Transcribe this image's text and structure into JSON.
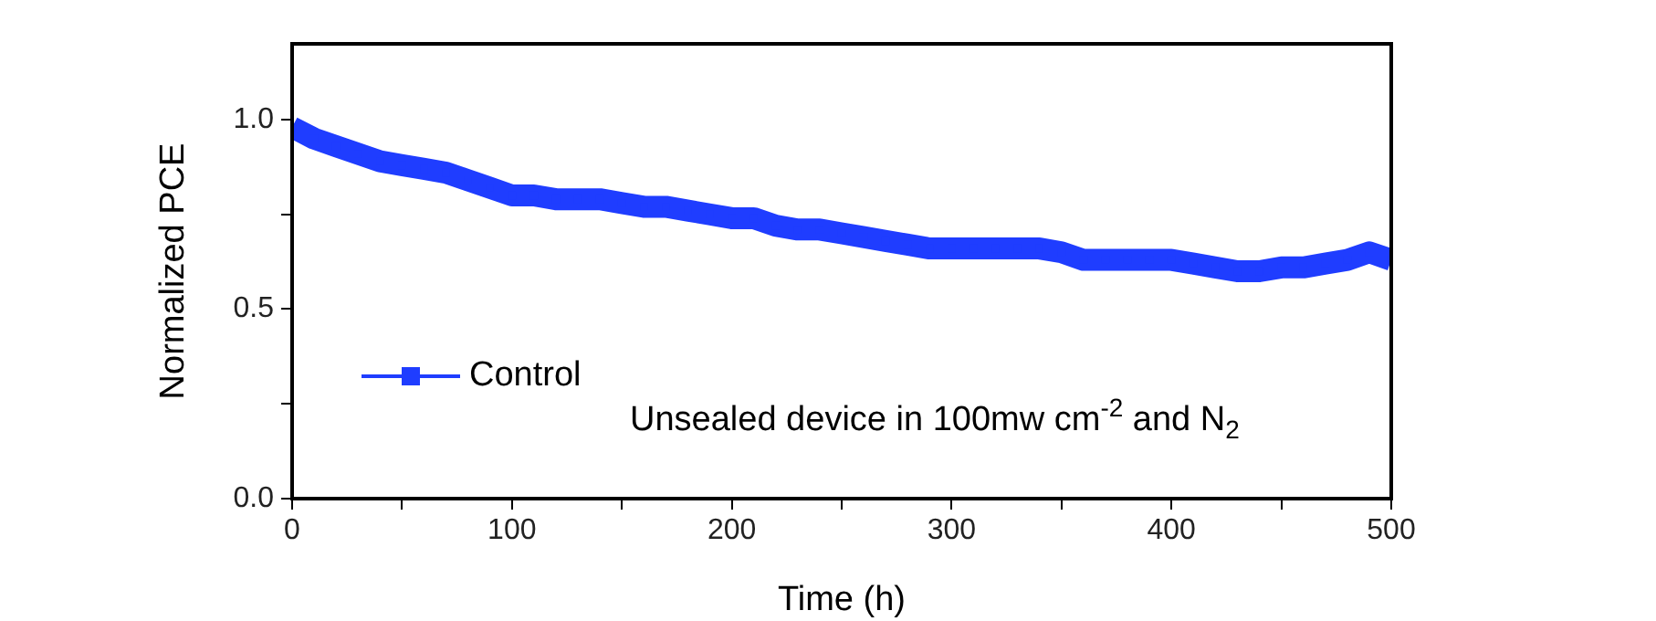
{
  "chart_data": {
    "type": "line",
    "xlabel": "Time (h)",
    "ylabel": "Normalized PCE",
    "xlim": [
      0,
      500
    ],
    "xticks": [
      0,
      {
        "value": 50,
        "label": null
      },
      100,
      {
        "value": 150,
        "label": null
      },
      200,
      {
        "value": 250,
        "label": null
      },
      300,
      {
        "value": 350,
        "label": null
      },
      400,
      {
        "value": 450,
        "label": null
      },
      500
    ],
    "ylim": [
      0,
      1.2
    ],
    "yticks": [
      {
        "value": 0,
        "label": "0.0"
      },
      {
        "value": 0.25,
        "label": null
      },
      0.5,
      {
        "value": 0.75,
        "label": null
      },
      {
        "value": 1,
        "label": "1.0"
      }
    ],
    "x": [
      0,
      10,
      20,
      30,
      40,
      50,
      60,
      70,
      80,
      90,
      100,
      110,
      120,
      130,
      140,
      150,
      160,
      170,
      180,
      190,
      200,
      210,
      220,
      230,
      240,
      250,
      260,
      270,
      280,
      290,
      300,
      310,
      320,
      330,
      340,
      350,
      360,
      370,
      380,
      390,
      400,
      410,
      420,
      430,
      440,
      450,
      460,
      470,
      480,
      490,
      500
    ],
    "series": [
      {
        "name": "Control",
        "color": "#1f3dff",
        "values": [
          0.98,
          0.95,
          0.93,
          0.91,
          0.89,
          0.88,
          0.87,
          0.86,
          0.84,
          0.82,
          0.8,
          0.8,
          0.79,
          0.79,
          0.79,
          0.78,
          0.77,
          0.77,
          0.76,
          0.75,
          0.74,
          0.74,
          0.72,
          0.71,
          0.71,
          0.7,
          0.69,
          0.68,
          0.67,
          0.66,
          0.66,
          0.66,
          0.66,
          0.66,
          0.66,
          0.65,
          0.63,
          0.63,
          0.63,
          0.63,
          0.63,
          0.62,
          0.61,
          0.6,
          0.6,
          0.61,
          0.61,
          0.62,
          0.63,
          0.65,
          0.63
        ]
      }
    ],
    "annotations": [
      "Unsealed device in 100mw cm$^{-2}$ and N$_{2}$"
    ],
    "legend": "bottom left",
    "marker": "square",
    "line_style": "solid",
    "grid": false
  }
}
